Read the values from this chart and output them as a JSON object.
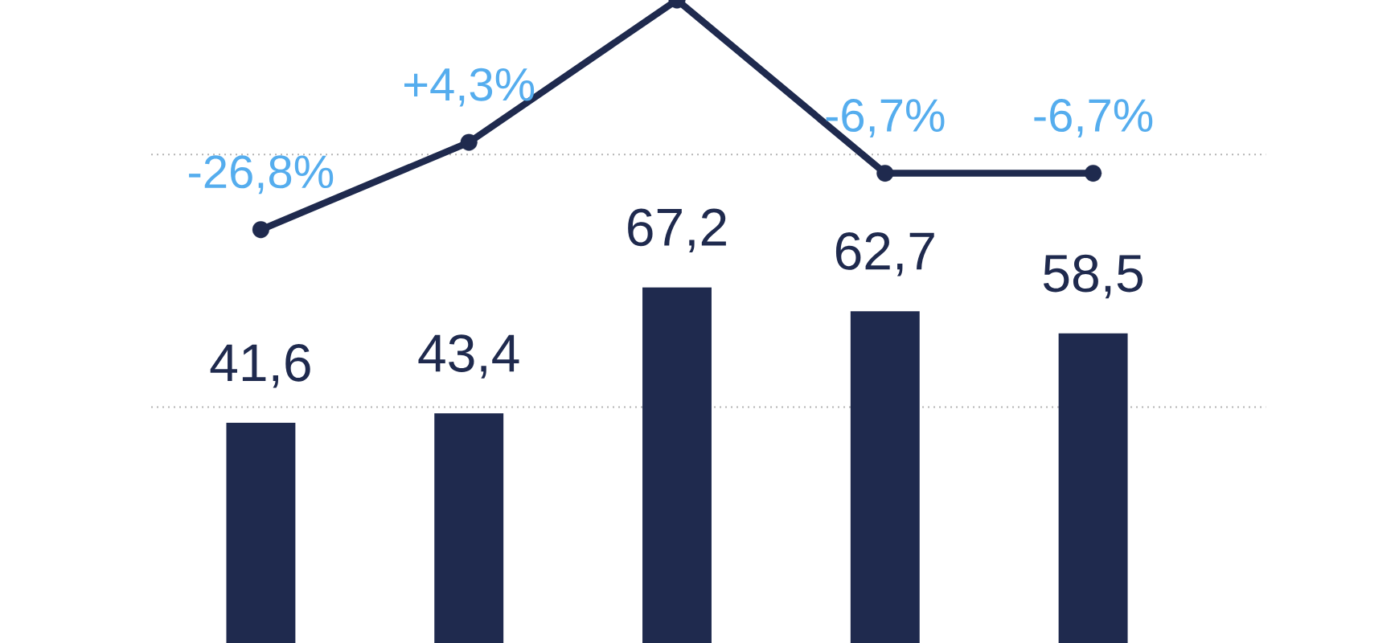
{
  "chart_data": [
    {
      "type": "line",
      "categories": [
        null,
        null,
        null,
        null,
        null
      ],
      "values": [
        -26.8,
        4.3,
        55,
        -6.7,
        -6.7
      ],
      "value_labels": [
        "-26,8%",
        "+4,3%",
        null,
        "-6,7%",
        "-6,7%"
      ],
      "color": "#1f2a4e",
      "marker": "circle",
      "line_style": "solid",
      "ref_lines": [
        {
          "axis": "y",
          "value": 0,
          "color": "#b4b4b4",
          "line_style": "dotted"
        },
        {
          "axis": "y",
          "value": -90,
          "color": "#b4b4b4",
          "line_style": "dotted"
        }
      ],
      "tick_labels": false
    },
    {
      "type": "bar",
      "categories": [
        null,
        null,
        null,
        null,
        null
      ],
      "values": [
        41.6,
        43.4,
        67.2,
        62.7,
        58.5
      ],
      "value_labels": [
        "41,6",
        "43,4",
        "67,2",
        "62,7",
        "58,5"
      ],
      "color": "#1f2a4e",
      "tick_labels": false
    }
  ]
}
